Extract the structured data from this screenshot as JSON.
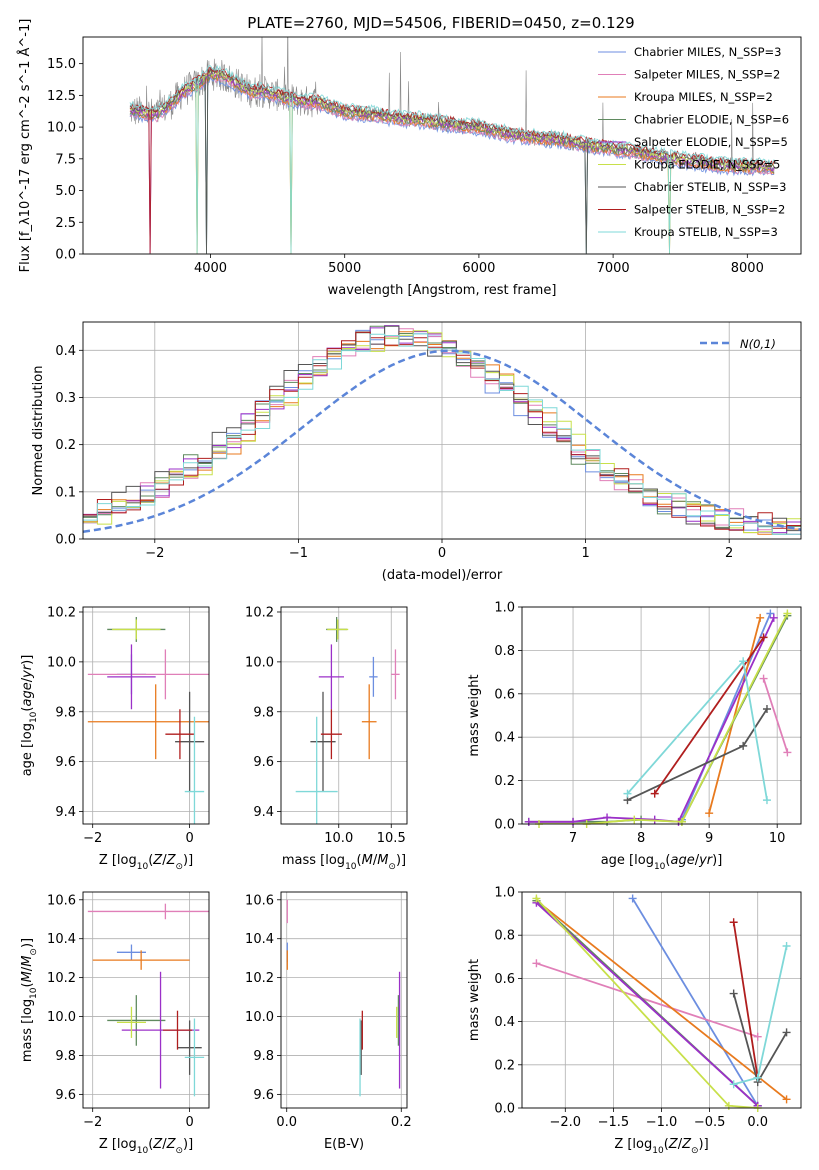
{
  "chart_data": [
    {
      "id": "spectrum",
      "type": "line",
      "title": "PLATE=2760, MJD=54506, FIBERID=0450, z=0.129",
      "xlabel": "wavelength [Angstrom, rest frame]",
      "ylabel": "Flux [f_λ10^-17 erg cm^-2 s^-1 Å^-1]",
      "xlim": [
        3050,
        8400
      ],
      "ylim": [
        0,
        17.1
      ],
      "xticks": [
        4000,
        5000,
        6000,
        7000,
        8000
      ],
      "yticks": [
        0.0,
        2.5,
        5.0,
        7.5,
        10.0,
        12.5,
        15.0
      ],
      "legend_position": "top-right",
      "series": [
        {
          "name": "Chabrier MILES, N_SSP=3",
          "color": "#6c8ee0"
        },
        {
          "name": "Salpeter MILES, N_SSP=2",
          "color": "#e07fb8"
        },
        {
          "name": "Kroupa MILES, N_SSP=2",
          "color": "#e87a1e"
        },
        {
          "name": "Chabrier ELODIE, N_SSP=6",
          "color": "#5f8a5f"
        },
        {
          "name": "Salpeter ELODIE, N_SSP=5",
          "color": "#9b30c8"
        },
        {
          "name": "Kroupa ELODIE, N_SSP=5",
          "color": "#c8e04a"
        },
        {
          "name": "Chabrier STELIB, N_SSP=3",
          "color": "#555555"
        },
        {
          "name": "Salpeter STELIB, N_SSP=2",
          "color": "#b01e1e"
        },
        {
          "name": "Kroupa STELIB, N_SSP=3",
          "color": "#7fd8d8"
        }
      ],
      "continuum_points": {
        "x": [
          3400,
          3600,
          3700,
          3800,
          3900,
          4000,
          4100,
          4200,
          4300,
          4400,
          4500,
          4600,
          4700,
          4800,
          4900,
          5000,
          5200,
          5400,
          5600,
          5800,
          6000,
          6200,
          6400,
          6600,
          6800,
          7000,
          7200,
          7400,
          7600,
          7800,
          8000,
          8200
        ],
        "y": [
          11.3,
          11.0,
          11.8,
          12.8,
          13.4,
          14.2,
          14.0,
          13.4,
          12.8,
          12.8,
          12.5,
          12.2,
          12.0,
          12.0,
          11.6,
          11.2,
          11.0,
          10.7,
          10.5,
          10.2,
          10.0,
          9.5,
          9.2,
          9.0,
          8.6,
          8.3,
          8.0,
          7.6,
          7.3,
          7.0,
          6.9,
          6.8
        ]
      }
    },
    {
      "id": "residuals",
      "type": "line",
      "xlabel": "(data-model)/error",
      "ylabel": "Normed distribution",
      "xlim": [
        -2.5,
        2.5
      ],
      "ylim": [
        0,
        0.46
      ],
      "xticks": [
        -2,
        -1,
        0,
        1,
        2
      ],
      "yticks": [
        0.0,
        0.1,
        0.2,
        0.3,
        0.4
      ],
      "grid": true,
      "legend_position": "top-right",
      "reference_curve": {
        "name": "N(0,1)",
        "mu": 0.05,
        "sigma": 1.0,
        "color": "#5b85d8"
      },
      "histogram_bin_width": 0.1
    },
    {
      "id": "age-vs-z",
      "type": "scatter",
      "xlabel": "Z [log10(Z/Z⊙)]",
      "ylabel": "age [log10(age/yr)]",
      "xlim": [
        -2.2,
        0.4
      ],
      "ylim": [
        9.35,
        10.22
      ],
      "xticks": [
        -2,
        0
      ],
      "yticks": [
        9.4,
        9.6,
        9.8,
        10.0,
        10.2
      ],
      "grid": true,
      "points": [
        {
          "series": 0,
          "x": -1.2,
          "xerr": 0.3,
          "y": 9.95,
          "yerr": 0.08
        },
        {
          "series": 1,
          "x": -0.5,
          "xerr": 1.6,
          "y": 9.95,
          "yerr": 0.1
        },
        {
          "series": 2,
          "x": -0.7,
          "xerr": 1.4,
          "y": 9.76,
          "yerr": 0.15
        },
        {
          "series": 3,
          "x": -1.1,
          "xerr": 0.6,
          "y": 10.13,
          "yerr": 0.05
        },
        {
          "series": 4,
          "x": -1.2,
          "xerr": 0.5,
          "y": 9.94,
          "yerr": 0.13
        },
        {
          "series": 5,
          "x": -1.1,
          "xerr": 0.5,
          "y": 10.13,
          "yerr": 0.04
        },
        {
          "series": 6,
          "x": 0.0,
          "xerr": 0.3,
          "y": 9.68,
          "yerr": 0.2
        },
        {
          "series": 7,
          "x": -0.2,
          "xerr": 0.3,
          "y": 9.71,
          "yerr": 0.1
        },
        {
          "series": 8,
          "x": 0.1,
          "xerr": 0.2,
          "y": 9.48,
          "yerr": 0.3
        }
      ]
    },
    {
      "id": "age-vs-mass",
      "type": "scatter",
      "xlabel": "mass [log10(M/M⊙)]",
      "xlim": [
        9.45,
        10.65
      ],
      "ylim": [
        9.35,
        10.22
      ],
      "xticks": [
        10.0,
        10.5
      ],
      "yticks": [
        9.4,
        9.6,
        9.8,
        10.0,
        10.2
      ],
      "grid": true,
      "points": [
        {
          "series": 0,
          "x": 10.33,
          "xerr": 0.04,
          "y": 9.94,
          "yerr": 0.08
        },
        {
          "series": 1,
          "x": 10.54,
          "xerr": 0.04,
          "y": 9.95,
          "yerr": 0.1
        },
        {
          "series": 2,
          "x": 10.29,
          "xerr": 0.07,
          "y": 9.76,
          "yerr": 0.15
        },
        {
          "series": 3,
          "x": 9.98,
          "xerr": 0.1,
          "y": 10.13,
          "yerr": 0.05
        },
        {
          "series": 4,
          "x": 9.93,
          "xerr": 0.12,
          "y": 9.94,
          "yerr": 0.13
        },
        {
          "series": 5,
          "x": 9.99,
          "xerr": 0.1,
          "y": 10.13,
          "yerr": 0.04
        },
        {
          "series": 6,
          "x": 9.85,
          "xerr": 0.12,
          "y": 9.68,
          "yerr": 0.2
        },
        {
          "series": 7,
          "x": 9.93,
          "xerr": 0.1,
          "y": 9.71,
          "yerr": 0.1
        },
        {
          "series": 8,
          "x": 9.79,
          "xerr": 0.2,
          "y": 9.48,
          "yerr": 0.3
        }
      ]
    },
    {
      "id": "weight-vs-age",
      "type": "line",
      "xlabel": "age [log10(age/yr)]",
      "ylabel": "mass weight",
      "xlim": [
        6.25,
        10.35
      ],
      "ylim": [
        0,
        1.0
      ],
      "xticks": [
        7,
        8,
        9,
        10
      ],
      "yticks": [
        0.0,
        0.2,
        0.4,
        0.6,
        0.8,
        1.0
      ],
      "grid": true,
      "series": [
        {
          "series": 0,
          "x": [
            8.6,
            9.9
          ],
          "y": [
            0.02,
            0.97
          ]
        },
        {
          "series": 1,
          "x": [
            9.8,
            10.15
          ],
          "y": [
            0.67,
            0.33
          ]
        },
        {
          "series": 2,
          "x": [
            9.0,
            9.75
          ],
          "y": [
            0.05,
            0.95
          ]
        },
        {
          "series": 3,
          "x": [
            6.35,
            7.0,
            7.5,
            8.0,
            8.6,
            10.15
          ],
          "y": [
            0.01,
            0.01,
            0.01,
            0.02,
            0.01,
            0.96
          ]
        },
        {
          "series": 4,
          "x": [
            6.35,
            7.0,
            7.5,
            8.2,
            8.55,
            9.95
          ],
          "y": [
            0.01,
            0.01,
            0.03,
            0.02,
            0.01,
            0.95
          ]
        },
        {
          "series": 5,
          "x": [
            6.5,
            7.2,
            7.9,
            8.6,
            10.15
          ],
          "y": [
            0.0,
            0.0,
            0.02,
            0.01,
            0.97
          ]
        },
        {
          "series": 6,
          "x": [
            7.8,
            9.5,
            9.85
          ],
          "y": [
            0.11,
            0.36,
            0.53
          ]
        },
        {
          "series": 7,
          "x": [
            8.2,
            9.8
          ],
          "y": [
            0.14,
            0.86
          ]
        },
        {
          "series": 8,
          "x": [
            7.8,
            9.5,
            9.85
          ],
          "y": [
            0.14,
            0.75,
            0.11
          ]
        }
      ]
    },
    {
      "id": "mass-vs-z",
      "type": "scatter",
      "xlabel": "Z [log10(Z/Z⊙)]",
      "ylabel": "mass [log10(M/M⊙)]",
      "xlim": [
        -2.2,
        0.4
      ],
      "ylim": [
        9.53,
        10.64
      ],
      "xticks": [
        -2,
        0
      ],
      "yticks": [
        9.6,
        9.8,
        10.0,
        10.2,
        10.4,
        10.6
      ],
      "grid": true,
      "points": [
        {
          "series": 0,
          "x": -1.2,
          "xerr": 0.3,
          "y": 10.33,
          "yerr": 0.04
        },
        {
          "series": 1,
          "x": -0.5,
          "xerr": 1.6,
          "y": 10.54,
          "yerr": 0.04
        },
        {
          "series": 2,
          "x": -1.0,
          "xerr": 1.0,
          "y": 10.29,
          "yerr": 0.05
        },
        {
          "series": 3,
          "x": -1.1,
          "xerr": 0.6,
          "y": 9.98,
          "yerr": 0.13
        },
        {
          "series": 4,
          "x": -0.6,
          "xerr": 0.8,
          "y": 9.93,
          "yerr": 0.3
        },
        {
          "series": 5,
          "x": -1.2,
          "xerr": 0.3,
          "y": 9.97,
          "yerr": 0.08
        },
        {
          "series": 6,
          "x": 0.0,
          "xerr": 0.25,
          "y": 9.84,
          "yerr": 0.14
        },
        {
          "series": 7,
          "x": -0.25,
          "xerr": 0.3,
          "y": 9.93,
          "yerr": 0.1
        },
        {
          "series": 8,
          "x": 0.1,
          "xerr": 0.2,
          "y": 9.79,
          "yerr": 0.2
        }
      ]
    },
    {
      "id": "mass-vs-ebv",
      "type": "scatter",
      "xlabel": "E(B-V)",
      "xlim": [
        -0.01,
        0.21
      ],
      "ylim": [
        9.53,
        10.64
      ],
      "xticks": [
        0.0,
        0.2
      ],
      "yticks": [
        9.6,
        9.8,
        10.0,
        10.2,
        10.4,
        10.6
      ],
      "grid": true,
      "points": [
        {
          "series": 0,
          "x": 0.001,
          "xerr": 0.0,
          "y": 10.33,
          "yerr": 0.05
        },
        {
          "series": 1,
          "x": 0.001,
          "xerr": 0.0,
          "y": 10.54,
          "yerr": 0.06
        },
        {
          "series": 2,
          "x": 0.001,
          "xerr": 0.0,
          "y": 10.29,
          "yerr": 0.05
        },
        {
          "series": 3,
          "x": 0.195,
          "xerr": 0.0,
          "y": 9.98,
          "yerr": 0.13
        },
        {
          "series": 4,
          "x": 0.197,
          "xerr": 0.0,
          "y": 9.93,
          "yerr": 0.3
        },
        {
          "series": 5,
          "x": 0.192,
          "xerr": 0.0,
          "y": 9.97,
          "yerr": 0.08
        },
        {
          "series": 6,
          "x": 0.13,
          "xerr": 0.0,
          "y": 9.84,
          "yerr": 0.14
        },
        {
          "series": 7,
          "x": 0.132,
          "xerr": 0.0,
          "y": 9.93,
          "yerr": 0.1
        },
        {
          "series": 8,
          "x": 0.128,
          "xerr": 0.0,
          "y": 9.79,
          "yerr": 0.2
        }
      ]
    },
    {
      "id": "weight-vs-z",
      "type": "line",
      "xlabel": "Z [log10(Z/Z⊙)]",
      "ylabel": "mass weight",
      "xlim": [
        -2.45,
        0.45
      ],
      "ylim": [
        0,
        1.0
      ],
      "xticks": [
        -2.0,
        -1.5,
        -1.0,
        -0.5,
        0.0
      ],
      "yticks": [
        0.0,
        0.2,
        0.4,
        0.6,
        0.8,
        1.0
      ],
      "grid": true,
      "series": [
        {
          "series": 0,
          "x": [
            -1.3,
            0.0
          ],
          "y": [
            0.97,
            0.01
          ]
        },
        {
          "series": 1,
          "x": [
            -2.3,
            0.0
          ],
          "y": [
            0.67,
            0.33
          ]
        },
        {
          "series": 2,
          "x": [
            -2.3,
            0.3
          ],
          "y": [
            0.96,
            0.04
          ]
        },
        {
          "series": 3,
          "x": [
            -2.3,
            0.0
          ],
          "y": [
            0.96,
            0.01
          ]
        },
        {
          "series": 4,
          "x": [
            -2.3,
            0.0
          ],
          "y": [
            0.95,
            0.01
          ]
        },
        {
          "series": 5,
          "x": [
            -2.3,
            -0.3,
            0.0
          ],
          "y": [
            0.97,
            0.01,
            0.0
          ]
        },
        {
          "series": 6,
          "x": [
            -0.25,
            0.0,
            0.3
          ],
          "y": [
            0.53,
            0.12,
            0.35
          ]
        },
        {
          "series": 7,
          "x": [
            -0.25,
            0.0
          ],
          "y": [
            0.86,
            0.14
          ]
        },
        {
          "series": 8,
          "x": [
            -0.25,
            0.0,
            0.3
          ],
          "y": [
            0.11,
            0.14,
            0.75
          ]
        }
      ]
    }
  ]
}
